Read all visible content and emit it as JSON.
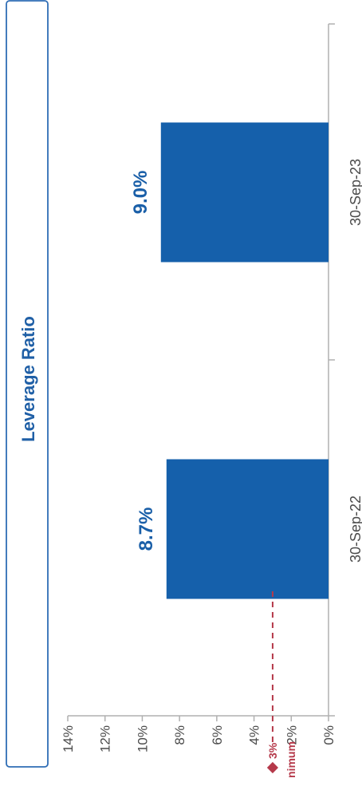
{
  "chart_data": {
    "type": "bar",
    "title": "Leverage Ratio",
    "categories": [
      "30-Sep-22",
      "30-Sep-23"
    ],
    "values": [
      8.7,
      9.0
    ],
    "value_labels": [
      "8.7%",
      "9.0%"
    ],
    "ylim": [
      0,
      14
    ],
    "y_ticks": [
      0,
      2,
      4,
      6,
      8,
      10,
      12,
      14
    ],
    "y_tick_labels": [
      "0%",
      "2%",
      "4%",
      "6%",
      "8%",
      "10%",
      "12%",
      "14%"
    ],
    "xlabel": "",
    "ylabel": "",
    "grid": false,
    "orientation": "rotated",
    "reference_line": {
      "value": 3,
      "label": "3%",
      "caption": "nimum"
    },
    "colors": {
      "bar": "#1560ab",
      "bar_label": "#1a5fa8",
      "title": "#1f5fa6",
      "title_border": "#2f6db5",
      "reference": "#b5394a",
      "axis": "#b0b0b0"
    }
  }
}
